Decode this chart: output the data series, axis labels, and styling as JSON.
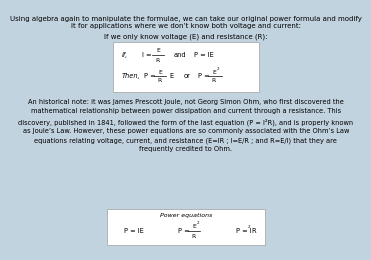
{
  "bg_color": "#c2d3e0",
  "title_text1": "Using algebra again to manipulate the formulae, we can take our original power formula and modify",
  "title_text2": "it for applications where we don’t know both voltage and current:",
  "subtitle": "If we only know voltage (E) and resistance (R):",
  "historical_text": [
    "An historical note: it was James Prescott Joule, not Georg Simon Ohm, who first discovered the",
    "mathematical relationship between power dissipation and current through a resistance. This",
    "discovery, published in 1841, followed the form of the last equation (P = I²R), and is properly known",
    "as Joule’s Law. However, these power equations are so commonly associated with the Ohm’s Law",
    "equations relating voltage, current, and resistance (E=IR ; I=E/R ; and R=E/I) that they are",
    "frequently credited to Ohm."
  ],
  "box2_title": "Power equations",
  "text_color": "#000000",
  "box_edge_color": "#aaaaaa"
}
